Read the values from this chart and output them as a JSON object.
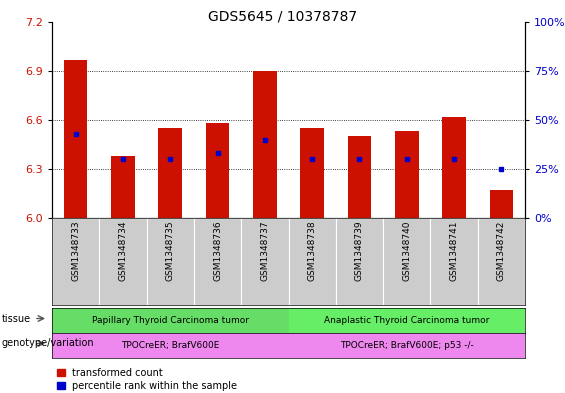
{
  "title": "GDS5645 / 10378787",
  "samples": [
    "GSM1348733",
    "GSM1348734",
    "GSM1348735",
    "GSM1348736",
    "GSM1348737",
    "GSM1348738",
    "GSM1348739",
    "GSM1348740",
    "GSM1348741",
    "GSM1348742"
  ],
  "red_values": [
    6.97,
    6.38,
    6.55,
    6.58,
    6.9,
    6.55,
    6.5,
    6.53,
    6.62,
    6.17
  ],
  "blue_values": [
    43,
    30,
    30,
    33,
    40,
    30,
    30,
    30,
    30,
    25
  ],
  "ylim_left": [
    6.0,
    7.2
  ],
  "ylim_right": [
    0,
    100
  ],
  "yticks_left": [
    6.0,
    6.3,
    6.6,
    6.9,
    7.2
  ],
  "yticks_right": [
    0,
    25,
    50,
    75,
    100
  ],
  "bar_color": "#cc1100",
  "dot_color": "#0000cc",
  "grid_values": [
    6.3,
    6.6,
    6.9
  ],
  "tissue_groups": [
    {
      "label": "Papillary Thyroid Carcinoma tumor",
      "start": 0,
      "end": 5,
      "color": "#66dd66"
    },
    {
      "label": "Anaplastic Thyroid Carcinoma tumor",
      "start": 5,
      "end": 10,
      "color": "#66ee66"
    }
  ],
  "genotype_groups": [
    {
      "label": "TPOCreER; BrafV600E",
      "start": 0,
      "end": 5,
      "color": "#ee88ee"
    },
    {
      "label": "TPOCreER; BrafV600E; p53 -/-",
      "start": 5,
      "end": 10,
      "color": "#ee88ee"
    }
  ],
  "legend_red": "transformed count",
  "legend_blue": "percentile rank within the sample",
  "tissue_label": "tissue",
  "genotype_label": "genotype/variation",
  "bar_width": 0.5,
  "sample_bg_color": "#cccccc"
}
